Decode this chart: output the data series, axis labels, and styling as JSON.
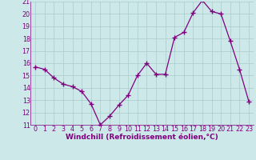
{
  "x": [
    0,
    1,
    2,
    3,
    4,
    5,
    6,
    7,
    8,
    9,
    10,
    11,
    12,
    13,
    14,
    15,
    16,
    17,
    18,
    19,
    20,
    21,
    22,
    23
  ],
  "y": [
    15.7,
    15.5,
    14.8,
    14.3,
    14.1,
    13.7,
    12.7,
    11.0,
    11.7,
    12.6,
    13.4,
    15.0,
    16.0,
    15.1,
    15.1,
    18.1,
    18.5,
    20.1,
    21.1,
    20.2,
    20.0,
    17.8,
    15.5,
    12.9
  ],
  "line_color": "#800080",
  "marker": "+",
  "marker_size": 4,
  "marker_linewidth": 1.0,
  "linewidth": 0.9,
  "xlim": [
    -0.5,
    23.5
  ],
  "ylim": [
    11,
    21
  ],
  "yticks": [
    11,
    12,
    13,
    14,
    15,
    16,
    17,
    18,
    19,
    20,
    21
  ],
  "xticks": [
    0,
    1,
    2,
    3,
    4,
    5,
    6,
    7,
    8,
    9,
    10,
    11,
    12,
    13,
    14,
    15,
    16,
    17,
    18,
    19,
    20,
    21,
    22,
    23
  ],
  "xlabel": "Windchill (Refroidissement éolien,°C)",
  "background_color": "#cce8e8",
  "grid_color": "#aacccc",
  "label_fontsize": 6.5,
  "tick_fontsize": 5.8,
  "xlabel_fontsize": 6.5
}
